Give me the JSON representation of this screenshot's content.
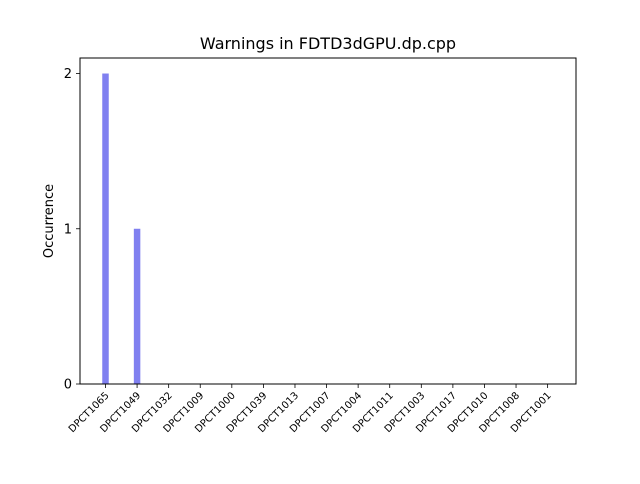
{
  "chart_data": {
    "type": "bar",
    "title": "Warnings in FDTD3dGPU.dp.cpp",
    "xlabel": "",
    "ylabel": "Occurrence",
    "categories": [
      "DPCT1065",
      "DPCT1049",
      "DPCT1032",
      "DPCT1009",
      "DPCT1000",
      "DPCT1039",
      "DPCT1013",
      "DPCT1007",
      "DPCT1004",
      "DPCT1011",
      "DPCT1003",
      "DPCT1017",
      "DPCT1010",
      "DPCT1008",
      "DPCT1001"
    ],
    "values": [
      2,
      1,
      0,
      0,
      0,
      0,
      0,
      0,
      0,
      0,
      0,
      0,
      0,
      0,
      0
    ],
    "ylim": [
      0,
      2.1
    ],
    "yticks": [
      0,
      1,
      2
    ],
    "bar_color": "#8080f0",
    "grid": false,
    "legend": "none"
  }
}
